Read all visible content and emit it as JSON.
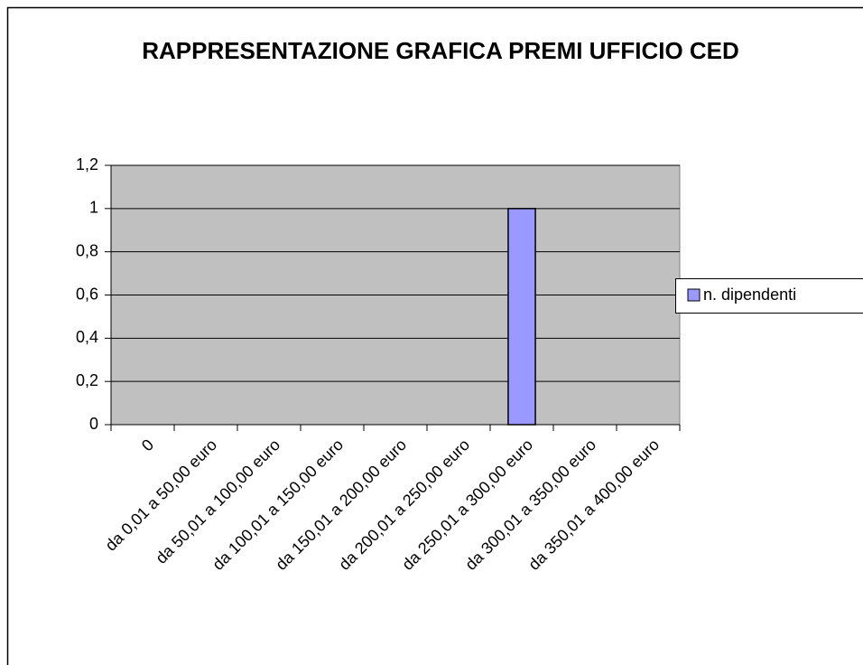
{
  "chart_data": {
    "type": "bar",
    "title": "RAPPRESENTAZIONE GRAFICA PREMI UFFICIO CED",
    "categories": [
      "0",
      "da 0,01 a 50,00 euro",
      "da 50,01 a 100,00 euro",
      "da 100,01 a 150,00 euro",
      "da 150,01 a 200,00 euro",
      "da 200,01 a 250,00 euro",
      "da 250,01 a 300,00 euro",
      "da 300,01 a 350,00 euro",
      "da 350,01 a 400,00 euro"
    ],
    "series": [
      {
        "name": "n. dipendenti",
        "color": "#9999ff",
        "values": [
          0,
          0,
          0,
          0,
          0,
          0,
          1,
          0,
          0
        ]
      }
    ],
    "ylim": [
      0,
      1.2
    ],
    "yticks": [
      0,
      {
        "value": 0.2,
        "label": "0,2"
      },
      {
        "value": 0.4,
        "label": "0,4"
      },
      {
        "value": 0.6,
        "label": "0,6"
      },
      {
        "value": 0.8,
        "label": "0,8"
      },
      1,
      {
        "value": 1.2,
        "label": "1,2"
      }
    ],
    "grid": true,
    "legend": "right"
  }
}
